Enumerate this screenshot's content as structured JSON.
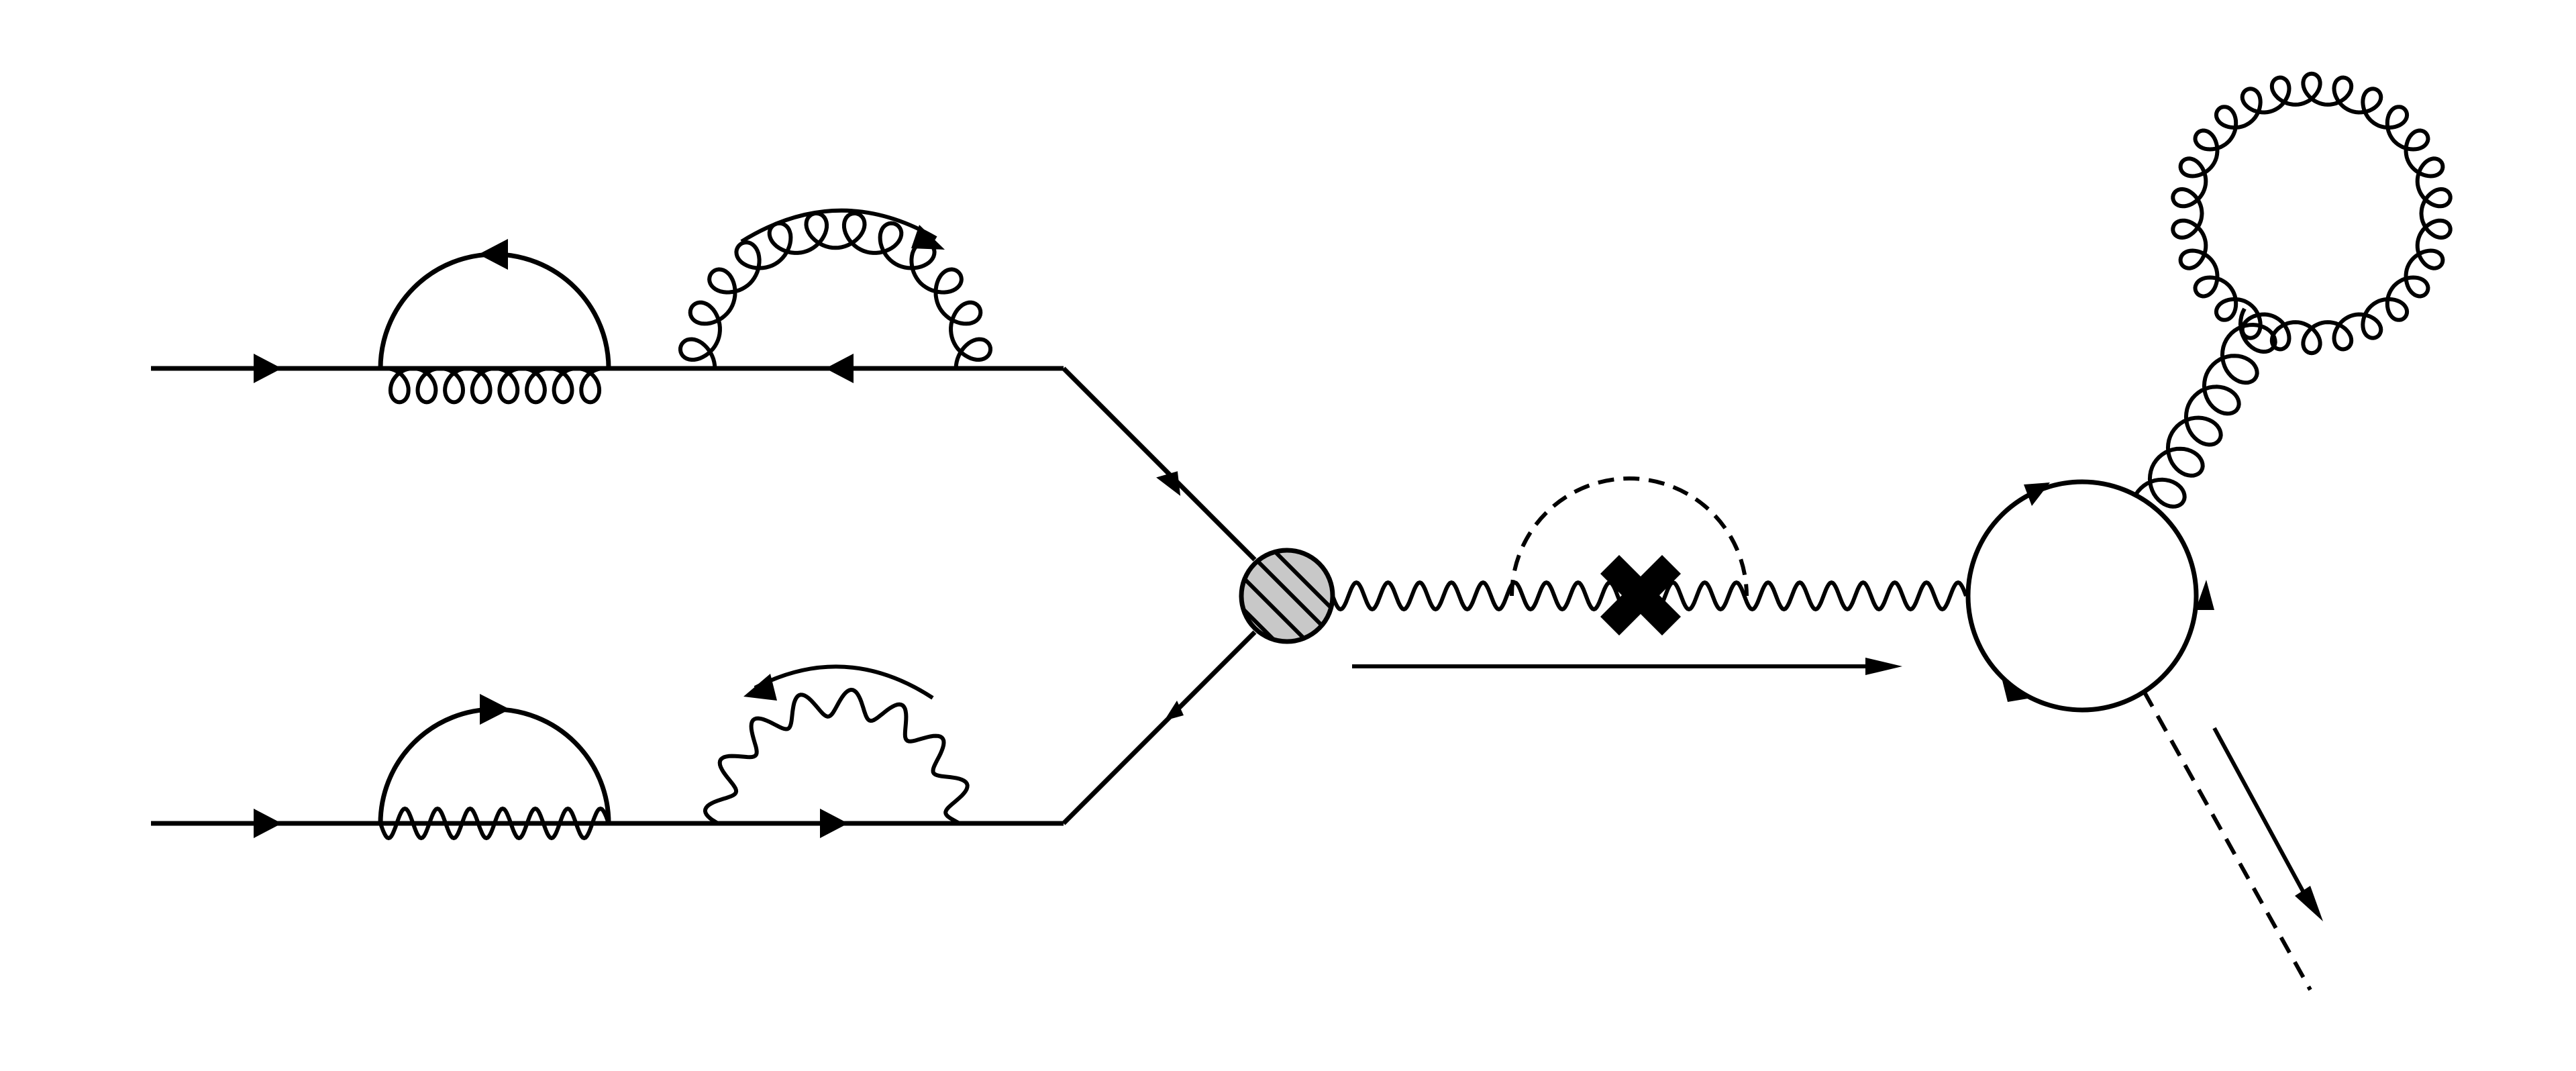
{
  "title": "",
  "colors": {
    "line": "#000000",
    "background": "#ffffff",
    "blob_fill": "#c8c8c8"
  },
  "elements": [
    {
      "kind": "fermion",
      "name": "upper-incoming-fermion-line"
    },
    {
      "kind": "fermion-loop",
      "name": "upper-fermion-self-energy-loop",
      "virtual": "gluon"
    },
    {
      "kind": "gluon-loop",
      "name": "upper-gluon-self-energy-loop",
      "virtual": "fermion"
    },
    {
      "kind": "fermion",
      "name": "lower-incoming-fermion-line"
    },
    {
      "kind": "fermion-loop",
      "name": "lower-fermion-self-energy-loop",
      "virtual": "photon"
    },
    {
      "kind": "photon-loop",
      "name": "lower-photon-self-energy-loop",
      "virtual": "fermion"
    },
    {
      "kind": "vertex-blob",
      "name": "hatched-interaction-blob"
    },
    {
      "kind": "photon",
      "name": "outgoing-photon-propagator"
    },
    {
      "kind": "scalar-loop",
      "name": "dashed-scalar-loop"
    },
    {
      "kind": "counterterm",
      "name": "counterterm-cross-icon"
    },
    {
      "kind": "fermion-loop",
      "name": "closed-fermion-loop"
    },
    {
      "kind": "gluon",
      "name": "gluon-tadpole-line"
    },
    {
      "kind": "gluon-loop",
      "name": "gluon-tadpole-loop"
    },
    {
      "kind": "scalar",
      "name": "outgoing-scalar-line"
    },
    {
      "kind": "momentum-arrow",
      "name": "momentum-arrows"
    }
  ]
}
